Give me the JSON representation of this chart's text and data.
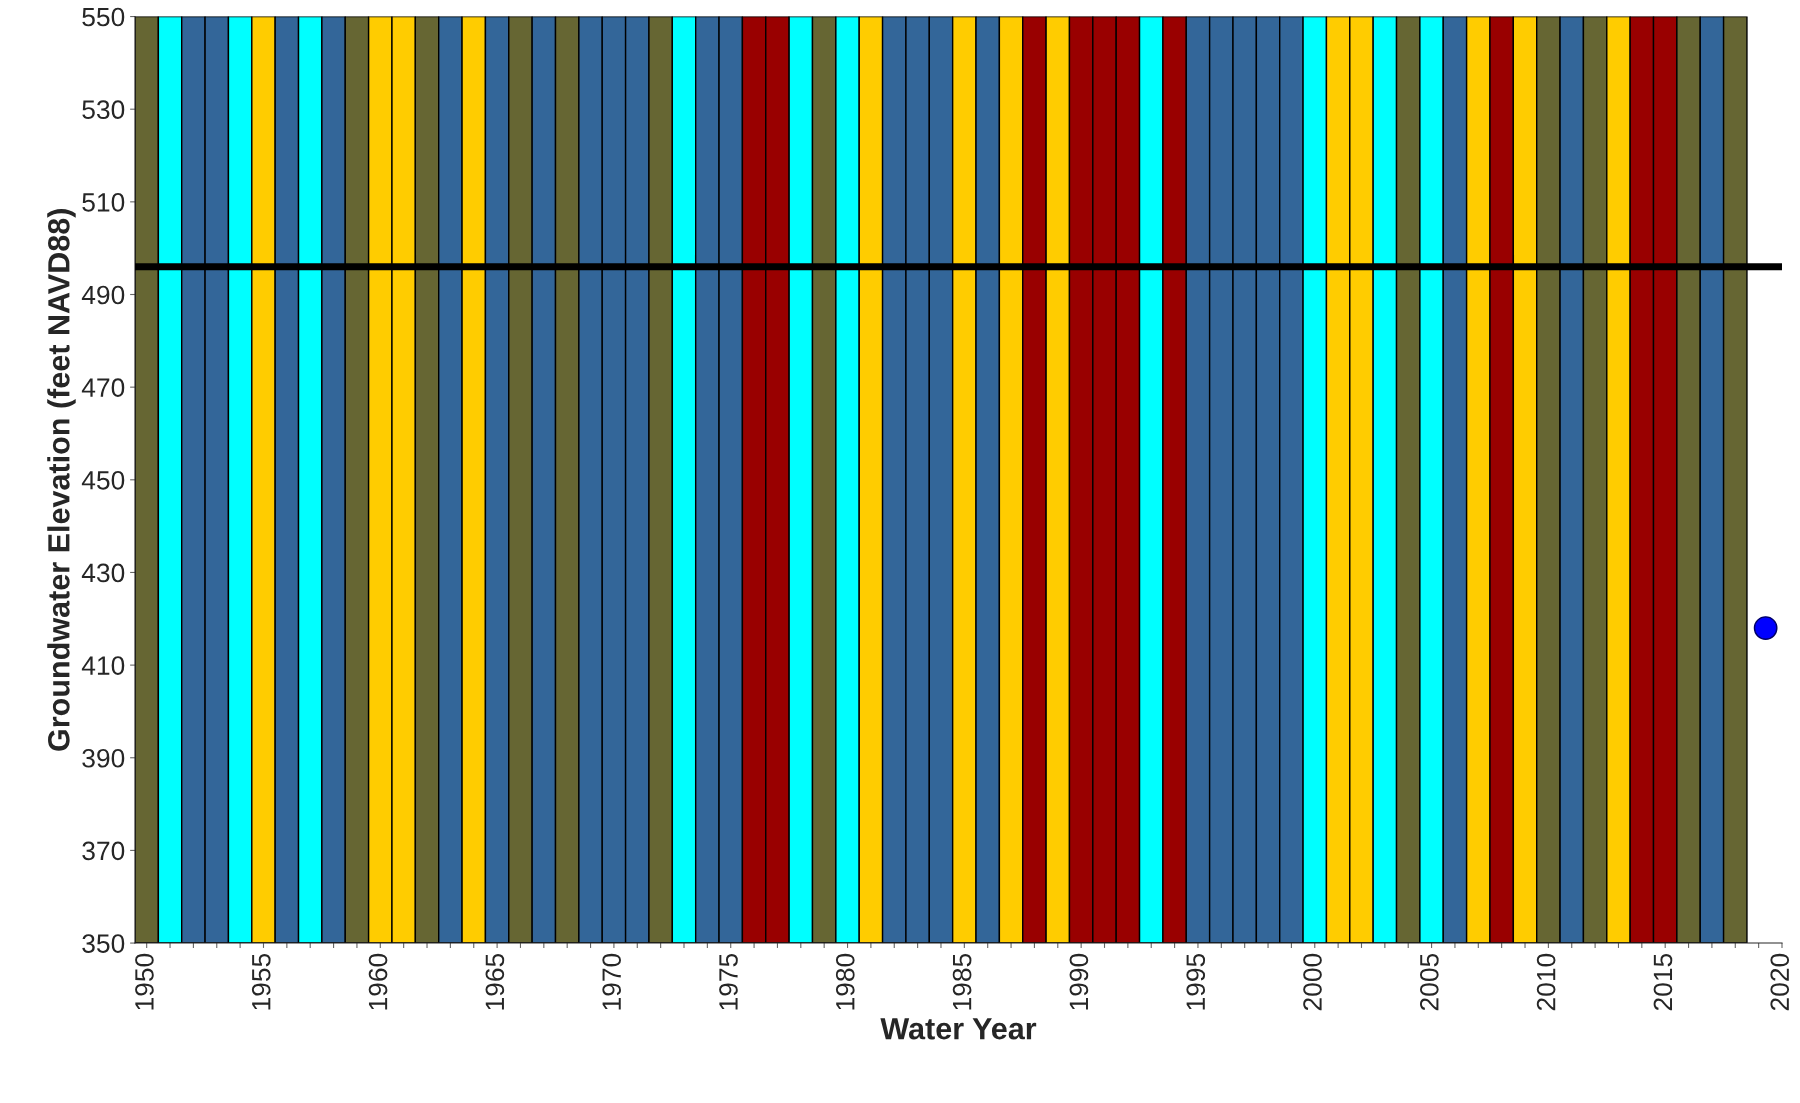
{
  "chart_data": {
    "type": "scatter",
    "xlabel": "Water Year",
    "ylabel": "Groundwater Elevation (feet NAVD88)",
    "xlim": [
      1949.5,
      2020
    ],
    "ylim": [
      350,
      550
    ],
    "xticks": [
      1950,
      {
        "value": 1951,
        "label": null
      },
      {
        "value": 1952,
        "label": null
      },
      {
        "value": 1953,
        "label": null
      },
      {
        "value": 1954,
        "label": null
      },
      1955,
      {
        "value": 1956,
        "label": null
      },
      {
        "value": 1957,
        "label": null
      },
      {
        "value": 1958,
        "label": null
      },
      {
        "value": 1959,
        "label": null
      },
      1960,
      {
        "value": 1961,
        "label": null
      },
      {
        "value": 1962,
        "label": null
      },
      {
        "value": 1963,
        "label": null
      },
      {
        "value": 1964,
        "label": null
      },
      1965,
      {
        "value": 1966,
        "label": null
      },
      {
        "value": 1967,
        "label": null
      },
      {
        "value": 1968,
        "label": null
      },
      {
        "value": 1969,
        "label": null
      },
      1970,
      {
        "value": 1971,
        "label": null
      },
      {
        "value": 1972,
        "label": null
      },
      {
        "value": 1973,
        "label": null
      },
      {
        "value": 1974,
        "label": null
      },
      1975,
      {
        "value": 1976,
        "label": null
      },
      {
        "value": 1977,
        "label": null
      },
      {
        "value": 1978,
        "label": null
      },
      {
        "value": 1979,
        "label": null
      },
      1980,
      {
        "value": 1981,
        "label": null
      },
      {
        "value": 1982,
        "label": null
      },
      {
        "value": 1983,
        "label": null
      },
      {
        "value": 1984,
        "label": null
      },
      1985,
      {
        "value": 1986,
        "label": null
      },
      {
        "value": 1987,
        "label": null
      },
      {
        "value": 1988,
        "label": null
      },
      {
        "value": 1989,
        "label": null
      },
      1990,
      {
        "value": 1991,
        "label": null
      },
      {
        "value": 1992,
        "label": null
      },
      {
        "value": 1993,
        "label": null
      },
      {
        "value": 1994,
        "label": null
      },
      1995,
      {
        "value": 1996,
        "label": null
      },
      {
        "value": 1997,
        "label": null
      },
      {
        "value": 1998,
        "label": null
      },
      {
        "value": 1999,
        "label": null
      },
      2000,
      {
        "value": 2001,
        "label": null
      },
      {
        "value": 2002,
        "label": null
      },
      {
        "value": 2003,
        "label": null
      },
      {
        "value": 2004,
        "label": null
      },
      2005,
      {
        "value": 2006,
        "label": null
      },
      {
        "value": 2007,
        "label": null
      },
      {
        "value": 2008,
        "label": null
      },
      {
        "value": 2009,
        "label": null
      },
      2010,
      {
        "value": 2011,
        "label": null
      },
      {
        "value": 2012,
        "label": null
      },
      {
        "value": 2013,
        "label": null
      },
      {
        "value": 2014,
        "label": null
      },
      2015,
      {
        "value": 2016,
        "label": null
      },
      {
        "value": 2017,
        "label": null
      },
      {
        "value": 2018,
        "label": null
      },
      {
        "value": 2019,
        "label": null
      },
      2020
    ],
    "yticks": [
      350,
      370,
      390,
      410,
      430,
      450,
      470,
      490,
      510,
      530,
      550
    ],
    "grid": false,
    "legend": false,
    "marker": "circle",
    "series": [
      {
        "color": "#0000ff",
        "x": [
          2019.3
        ],
        "values": [
          418
        ]
      }
    ],
    "ref_lines": [
      {
        "axis": "y",
        "value": 496,
        "color": "#000000",
        "line_style": "solid"
      }
    ],
    "bands": [
      {
        "axis": "x",
        "from": 1949.5,
        "to": 1950.5,
        "color": "#666633"
      },
      {
        "axis": "x",
        "from": 1950.5,
        "to": 1951.5,
        "color": "#00ffff"
      },
      {
        "axis": "x",
        "from": 1951.5,
        "to": 1952.5,
        "color": "#336699"
      },
      {
        "axis": "x",
        "from": 1952.5,
        "to": 1953.5,
        "color": "#336699"
      },
      {
        "axis": "x",
        "from": 1953.5,
        "to": 1954.5,
        "color": "#00ffff"
      },
      {
        "axis": "x",
        "from": 1954.5,
        "to": 1955.5,
        "color": "#ffcc00"
      },
      {
        "axis": "x",
        "from": 1955.5,
        "to": 1956.5,
        "color": "#336699"
      },
      {
        "axis": "x",
        "from": 1956.5,
        "to": 1957.5,
        "color": "#00ffff"
      },
      {
        "axis": "x",
        "from": 1957.5,
        "to": 1958.5,
        "color": "#336699"
      },
      {
        "axis": "x",
        "from": 1958.5,
        "to": 1959.5,
        "color": "#666633"
      },
      {
        "axis": "x",
        "from": 1959.5,
        "to": 1960.5,
        "color": "#ffcc00"
      },
      {
        "axis": "x",
        "from": 1960.5,
        "to": 1961.5,
        "color": "#ffcc00"
      },
      {
        "axis": "x",
        "from": 1961.5,
        "to": 1962.5,
        "color": "#666633"
      },
      {
        "axis": "x",
        "from": 1962.5,
        "to": 1963.5,
        "color": "#336699"
      },
      {
        "axis": "x",
        "from": 1963.5,
        "to": 1964.5,
        "color": "#ffcc00"
      },
      {
        "axis": "x",
        "from": 1964.5,
        "to": 1965.5,
        "color": "#336699"
      },
      {
        "axis": "x",
        "from": 1965.5,
        "to": 1966.5,
        "color": "#666633"
      },
      {
        "axis": "x",
        "from": 1966.5,
        "to": 1967.5,
        "color": "#336699"
      },
      {
        "axis": "x",
        "from": 1967.5,
        "to": 1968.5,
        "color": "#666633"
      },
      {
        "axis": "x",
        "from": 1968.5,
        "to": 1969.5,
        "color": "#336699"
      },
      {
        "axis": "x",
        "from": 1969.5,
        "to": 1970.5,
        "color": "#336699"
      },
      {
        "axis": "x",
        "from": 1970.5,
        "to": 1971.5,
        "color": "#336699"
      },
      {
        "axis": "x",
        "from": 1971.5,
        "to": 1972.5,
        "color": "#666633"
      },
      {
        "axis": "x",
        "from": 1972.5,
        "to": 1973.5,
        "color": "#00ffff"
      },
      {
        "axis": "x",
        "from": 1973.5,
        "to": 1974.5,
        "color": "#336699"
      },
      {
        "axis": "x",
        "from": 1974.5,
        "to": 1975.5,
        "color": "#336699"
      },
      {
        "axis": "x",
        "from": 1975.5,
        "to": 1976.5,
        "color": "#990000"
      },
      {
        "axis": "x",
        "from": 1976.5,
        "to": 1977.5,
        "color": "#990000"
      },
      {
        "axis": "x",
        "from": 1977.5,
        "to": 1978.5,
        "color": "#00ffff"
      },
      {
        "axis": "x",
        "from": 1978.5,
        "to": 1979.5,
        "color": "#666633"
      },
      {
        "axis": "x",
        "from": 1979.5,
        "to": 1980.5,
        "color": "#00ffff"
      },
      {
        "axis": "x",
        "from": 1980.5,
        "to": 1981.5,
        "color": "#ffcc00"
      },
      {
        "axis": "x",
        "from": 1981.5,
        "to": 1982.5,
        "color": "#336699"
      },
      {
        "axis": "x",
        "from": 1982.5,
        "to": 1983.5,
        "color": "#336699"
      },
      {
        "axis": "x",
        "from": 1983.5,
        "to": 1984.5,
        "color": "#336699"
      },
      {
        "axis": "x",
        "from": 1984.5,
        "to": 1985.5,
        "color": "#ffcc00"
      },
      {
        "axis": "x",
        "from": 1985.5,
        "to": 1986.5,
        "color": "#336699"
      },
      {
        "axis": "x",
        "from": 1986.5,
        "to": 1987.5,
        "color": "#ffcc00"
      },
      {
        "axis": "x",
        "from": 1987.5,
        "to": 1988.5,
        "color": "#990000"
      },
      {
        "axis": "x",
        "from": 1988.5,
        "to": 1989.5,
        "color": "#ffcc00"
      },
      {
        "axis": "x",
        "from": 1989.5,
        "to": 1990.5,
        "color": "#990000"
      },
      {
        "axis": "x",
        "from": 1990.5,
        "to": 1991.5,
        "color": "#990000"
      },
      {
        "axis": "x",
        "from": 1991.5,
        "to": 1992.5,
        "color": "#990000"
      },
      {
        "axis": "x",
        "from": 1992.5,
        "to": 1993.5,
        "color": "#00ffff"
      },
      {
        "axis": "x",
        "from": 1993.5,
        "to": 1994.5,
        "color": "#990000"
      },
      {
        "axis": "x",
        "from": 1994.5,
        "to": 1995.5,
        "color": "#336699"
      },
      {
        "axis": "x",
        "from": 1995.5,
        "to": 1996.5,
        "color": "#336699"
      },
      {
        "axis": "x",
        "from": 1996.5,
        "to": 1997.5,
        "color": "#336699"
      },
      {
        "axis": "x",
        "from": 1997.5,
        "to": 1998.5,
        "color": "#336699"
      },
      {
        "axis": "x",
        "from": 1998.5,
        "to": 1999.5,
        "color": "#336699"
      },
      {
        "axis": "x",
        "from": 1999.5,
        "to": 2000.5,
        "color": "#00ffff"
      },
      {
        "axis": "x",
        "from": 2000.5,
        "to": 2001.5,
        "color": "#ffcc00"
      },
      {
        "axis": "x",
        "from": 2001.5,
        "to": 2002.5,
        "color": "#ffcc00"
      },
      {
        "axis": "x",
        "from": 2002.5,
        "to": 2003.5,
        "color": "#00ffff"
      },
      {
        "axis": "x",
        "from": 2003.5,
        "to": 2004.5,
        "color": "#666633"
      },
      {
        "axis": "x",
        "from": 2004.5,
        "to": 2005.5,
        "color": "#00ffff"
      },
      {
        "axis": "x",
        "from": 2005.5,
        "to": 2006.5,
        "color": "#336699"
      },
      {
        "axis": "x",
        "from": 2006.5,
        "to": 2007.5,
        "color": "#ffcc00"
      },
      {
        "axis": "x",
        "from": 2007.5,
        "to": 2008.5,
        "color": "#990000"
      },
      {
        "axis": "x",
        "from": 2008.5,
        "to": 2009.5,
        "color": "#ffcc00"
      },
      {
        "axis": "x",
        "from": 2009.5,
        "to": 2010.5,
        "color": "#666633"
      },
      {
        "axis": "x",
        "from": 2010.5,
        "to": 2011.5,
        "color": "#336699"
      },
      {
        "axis": "x",
        "from": 2011.5,
        "to": 2012.5,
        "color": "#666633"
      },
      {
        "axis": "x",
        "from": 2012.5,
        "to": 2013.5,
        "color": "#ffcc00"
      },
      {
        "axis": "x",
        "from": 2013.5,
        "to": 2014.5,
        "color": "#990000"
      },
      {
        "axis": "x",
        "from": 2014.5,
        "to": 2015.5,
        "color": "#990000"
      },
      {
        "axis": "x",
        "from": 2015.5,
        "to": 2016.5,
        "color": "#666633"
      },
      {
        "axis": "x",
        "from": 2016.5,
        "to": 2017.5,
        "color": "#336699"
      },
      {
        "axis": "x",
        "from": 2017.5,
        "to": 2018.5,
        "color": "#666633"
      }
    ]
  }
}
